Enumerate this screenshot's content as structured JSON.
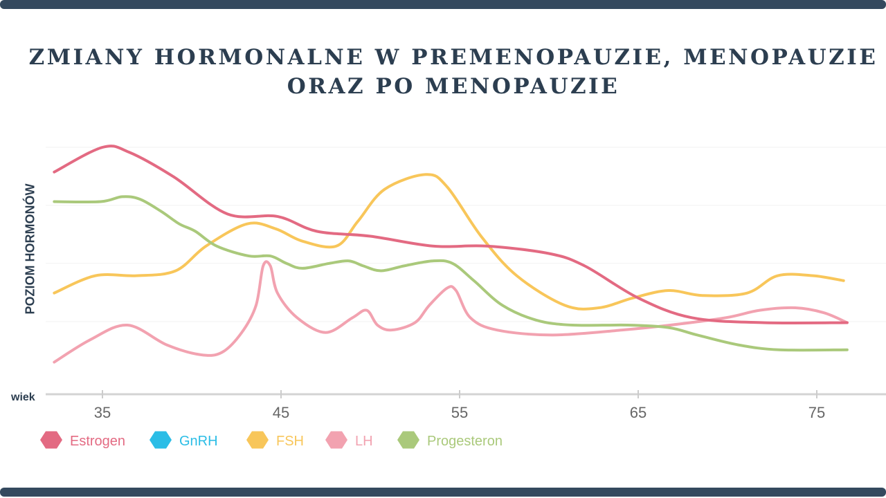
{
  "chart_data": {
    "type": "line",
    "title": "ZMIANY HORMONALNE W PREMENOPAUZIE, MENOPAUZIE ORAZ PO MENOPAUZIE",
    "xlabel": "wiek",
    "ylabel": "POZIOM HORMONÓW",
    "xlim": [
      32,
      78
    ],
    "ylim": [
      0,
      100
    ],
    "x_ticks": [
      35,
      45,
      55,
      65,
      75
    ],
    "grid": true,
    "legend_placement": "bottom-left",
    "series": [
      {
        "name": "Estrogen",
        "color": "#e36a82",
        "points": [
          [
            32.3,
            90
          ],
          [
            35,
            100
          ],
          [
            36.5,
            98
          ],
          [
            39,
            88
          ],
          [
            42,
            73
          ],
          [
            44.8,
            72
          ],
          [
            47,
            66
          ],
          [
            50,
            64
          ],
          [
            53.5,
            60
          ],
          [
            56.5,
            60
          ],
          [
            60,
            57
          ],
          [
            62,
            52
          ],
          [
            65,
            39
          ],
          [
            68,
            31
          ],
          [
            72,
            29
          ],
          [
            76.7,
            29
          ]
        ]
      },
      {
        "name": "GnRH",
        "color": "#2bbde6",
        "points": []
      },
      {
        "name": "FSH",
        "color": "#f8c65a",
        "points": [
          [
            32.3,
            41
          ],
          [
            34.6,
            48
          ],
          [
            36.9,
            48
          ],
          [
            39.1,
            50
          ],
          [
            40.8,
            60
          ],
          [
            43.1,
            69
          ],
          [
            44.7,
            67
          ],
          [
            46.2,
            62
          ],
          [
            48.1,
            60
          ],
          [
            49.3,
            70
          ],
          [
            50.8,
            83
          ],
          [
            53.1,
            89
          ],
          [
            54.3,
            84
          ],
          [
            56.2,
            64
          ],
          [
            58.2,
            48
          ],
          [
            60.9,
            36
          ],
          [
            62.8,
            35
          ],
          [
            64.7,
            39
          ],
          [
            66.7,
            42
          ],
          [
            68.6,
            40
          ],
          [
            71.1,
            41
          ],
          [
            72.8,
            48
          ],
          [
            74.8,
            48
          ],
          [
            76.5,
            46
          ]
        ]
      },
      {
        "name": "LH",
        "color": "#f2a2b0",
        "points": [
          [
            32.3,
            13
          ],
          [
            34.3,
            22
          ],
          [
            36.4,
            28
          ],
          [
            38.6,
            20
          ],
          [
            40.5,
            16
          ],
          [
            41.7,
            17
          ],
          [
            42.8,
            25
          ],
          [
            43.6,
            36
          ],
          [
            44.0,
            52
          ],
          [
            44.4,
            52
          ],
          [
            44.8,
            41
          ],
          [
            45.9,
            31
          ],
          [
            47.5,
            25
          ],
          [
            49.0,
            31
          ],
          [
            49.8,
            34
          ],
          [
            50.4,
            28
          ],
          [
            51.2,
            26
          ],
          [
            52.5,
            29
          ],
          [
            53.3,
            36
          ],
          [
            54.3,
            43
          ],
          [
            54.8,
            42
          ],
          [
            55.6,
            31
          ],
          [
            57.1,
            26
          ],
          [
            60.2,
            24
          ],
          [
            64.1,
            26
          ],
          [
            66.8,
            28
          ],
          [
            69.9,
            31
          ],
          [
            71.8,
            34
          ],
          [
            73.8,
            35
          ],
          [
            75.4,
            33
          ],
          [
            76.7,
            29
          ]
        ]
      },
      {
        "name": "Progesteron",
        "color": "#aac97b",
        "points": [
          [
            32.3,
            78
          ],
          [
            34.9,
            78
          ],
          [
            36.1,
            80
          ],
          [
            37.1,
            79
          ],
          [
            38.3,
            74
          ],
          [
            39.3,
            69
          ],
          [
            40.2,
            66
          ],
          [
            41.4,
            60
          ],
          [
            43.2,
            56
          ],
          [
            44.4,
            56
          ],
          [
            45.3,
            53
          ],
          [
            46.2,
            51
          ],
          [
            47.7,
            53
          ],
          [
            48.8,
            54
          ],
          [
            49.6,
            52
          ],
          [
            50.6,
            50
          ],
          [
            51.9,
            52
          ],
          [
            53.5,
            54
          ],
          [
            54.6,
            53
          ],
          [
            55.8,
            46
          ],
          [
            57.4,
            36
          ],
          [
            59.3,
            30
          ],
          [
            61.3,
            28
          ],
          [
            64.4,
            28
          ],
          [
            66.7,
            27
          ],
          [
            68.3,
            24
          ],
          [
            70.6,
            20
          ],
          [
            72.9,
            18
          ],
          [
            76.7,
            18
          ]
        ]
      }
    ]
  }
}
